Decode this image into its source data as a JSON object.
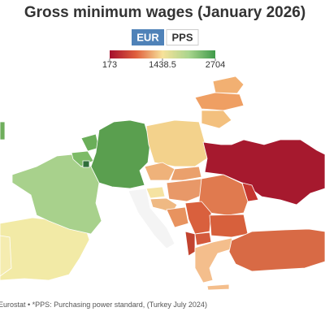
{
  "title": "Gross minimum wages (January 2026)",
  "toggle": {
    "options": [
      "EUR",
      "PPS"
    ]
  },
  "legend": {
    "min": 173,
    "mid": 1438.5,
    "max": 2704
  },
  "source": "Eurostat • *PPS: Purchasing power standard, (Turkey July 2024)"
}
